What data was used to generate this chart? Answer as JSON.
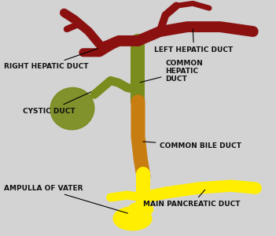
{
  "bg_color": "#d3d3d3",
  "dark_red": "#8B1010",
  "olive_green": "#7A8C1E",
  "orange_brown": "#C87D10",
  "yellow": "#FFEE00",
  "text_color": "#111111",
  "labels": {
    "right_hepatic": "RIGHT HEPATIC DUCT",
    "left_hepatic": "LEFT HEPATIC DUCT",
    "common_hepatic": "COMMON\nHEPATIC\nDUCT",
    "cystic": "CYSTIC DUCT",
    "common_bile": "COMMON BILE DUCT",
    "ampulla": "AMPULLA OF VATER",
    "main_pancreatic": "MAIN PANCREATIC DUCT"
  },
  "fontsize": 6.5
}
